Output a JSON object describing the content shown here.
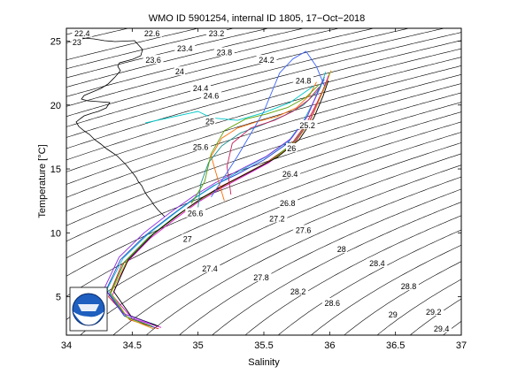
{
  "chart_data": {
    "type": "line",
    "title": "WMO ID 5901254, internal ID 1805, 17−Oct−2018",
    "xlabel": "Salinity",
    "ylabel": "Temperature [°C]",
    "xlim": [
      34,
      37
    ],
    "ylim": [
      2,
      26
    ],
    "x_ticks": [
      34,
      34.5,
      35,
      35.5,
      36,
      36.5,
      37
    ],
    "x_tick_labels": [
      "34",
      "34.5",
      "35",
      "35.5",
      "36",
      "36.5",
      "37"
    ],
    "y_ticks": [
      5,
      10,
      15,
      20,
      25
    ],
    "y_tick_labels": [
      "5",
      "10",
      "15",
      "20",
      "25"
    ],
    "grid": false,
    "density_contours": {
      "levels": [
        22.4,
        22.6,
        23,
        23.2,
        23.4,
        23.6,
        23.8,
        24,
        24.2,
        24.4,
        24.6,
        24.8,
        25,
        25.2,
        25.4,
        25.6,
        25.8,
        26,
        26.2,
        26.4,
        26.6,
        26.8,
        27,
        27.2,
        27.4,
        27.6,
        27.8,
        28,
        28.2,
        28.4,
        28.6,
        28.8,
        29,
        29.2,
        29.4,
        29.6
      ],
      "labels": [
        {
          "text": "22.4",
          "s": 34.12,
          "t": 25.6
        },
        {
          "text": "22.6",
          "s": 34.65,
          "t": 25.6
        },
        {
          "text": "23",
          "s": 34.08,
          "t": 24.9
        },
        {
          "text": "23.2",
          "s": 35.14,
          "t": 25.6
        },
        {
          "text": "23.4",
          "s": 34.9,
          "t": 24.4
        },
        {
          "text": "23.6",
          "s": 34.66,
          "t": 23.5
        },
        {
          "text": "23.8",
          "s": 35.2,
          "t": 24.1
        },
        {
          "text": "24",
          "s": 34.86,
          "t": 22.6
        },
        {
          "text": "24.2",
          "s": 35.52,
          "t": 23.5
        },
        {
          "text": "24.4",
          "s": 35.02,
          "t": 21.3
        },
        {
          "text": "24.6",
          "s": 35.1,
          "t": 20.7
        },
        {
          "text": "24.8",
          "s": 35.8,
          "t": 21.9
        },
        {
          "text": "25",
          "s": 35.09,
          "t": 18.7
        },
        {
          "text": "25.2",
          "s": 35.83,
          "t": 18.4
        },
        {
          "text": "25.6",
          "s": 35.02,
          "t": 16.7
        },
        {
          "text": "26",
          "s": 35.71,
          "t": 16.6
        },
        {
          "text": "26.4",
          "s": 35.7,
          "t": 14.6
        },
        {
          "text": "26.6",
          "s": 34.98,
          "t": 11.5
        },
        {
          "text": "26.8",
          "s": 35.68,
          "t": 12.3
        },
        {
          "text": "27",
          "s": 34.92,
          "t": 9.5
        },
        {
          "text": "27.2",
          "s": 35.6,
          "t": 11.1
        },
        {
          "text": "27.4",
          "s": 35.09,
          "t": 7.2
        },
        {
          "text": "27.6",
          "s": 35.8,
          "t": 10.2
        },
        {
          "text": "27.8",
          "s": 35.48,
          "t": 6.5
        },
        {
          "text": "28",
          "s": 36.09,
          "t": 8.7
        },
        {
          "text": "28.2",
          "s": 35.76,
          "t": 5.4
        },
        {
          "text": "28.4",
          "s": 36.36,
          "t": 7.6
        },
        {
          "text": "28.6",
          "s": 36.02,
          "t": 4.5
        },
        {
          "text": "28.8",
          "s": 36.6,
          "t": 5.8
        },
        {
          "text": "29",
          "s": 36.48,
          "t": 3.6
        },
        {
          "text": "29.2",
          "s": 36.79,
          "t": 3.8
        },
        {
          "text": "29.4",
          "s": 36.85,
          "t": 2.5
        }
      ]
    },
    "series": [
      {
        "color": "#d61a1a",
        "s": [
          34.7,
          34.48,
          34.32,
          34.42,
          34.62,
          34.82,
          35.0,
          35.15,
          35.32,
          35.52,
          35.7,
          35.82,
          35.9,
          35.95,
          35.98
        ],
        "t": [
          2.5,
          3.2,
          5.0,
          7.5,
          9.6,
          11.2,
          12.5,
          13.5,
          14.4,
          15.5,
          16.8,
          18.5,
          20.1,
          21.2,
          22.0
        ]
      },
      {
        "color": "#1f3fd6",
        "s": [
          34.67,
          34.44,
          34.3,
          34.41,
          34.6,
          34.8,
          34.97,
          35.12,
          35.3,
          35.5,
          35.68,
          35.8,
          35.88,
          35.93,
          35.96
        ],
        "t": [
          2.6,
          3.5,
          5.5,
          7.9,
          9.8,
          11.4,
          12.7,
          13.7,
          14.6,
          15.7,
          17.0,
          18.7,
          20.3,
          21.4,
          22.2
        ]
      },
      {
        "color": "#16a21c",
        "s": [
          34.65,
          34.46,
          34.33,
          34.44,
          34.63,
          34.83,
          35.02,
          35.18,
          35.36,
          35.56,
          35.73,
          35.85,
          35.92,
          35.97,
          36.0
        ],
        "t": [
          2.7,
          3.4,
          5.2,
          7.7,
          9.7,
          11.3,
          12.6,
          13.6,
          14.6,
          15.7,
          17.1,
          18.8,
          20.4,
          21.6,
          22.5
        ]
      },
      {
        "color": "#d616d6",
        "s": [
          34.72,
          34.5,
          34.35,
          34.45,
          34.64,
          34.84,
          35.0,
          35.16,
          35.34,
          35.54,
          35.72,
          35.84,
          35.91,
          35.96,
          35.99
        ],
        "t": [
          2.6,
          3.3,
          5.1,
          7.6,
          9.6,
          11.2,
          12.4,
          13.4,
          14.4,
          15.5,
          16.9,
          18.6,
          20.2,
          21.3,
          22.3
        ]
      },
      {
        "color": "#16b8c8",
        "s": [
          34.68,
          34.45,
          34.31,
          34.43,
          34.62,
          34.82,
          34.99,
          35.14,
          35.31,
          35.51,
          35.69,
          35.81,
          35.89,
          35.94,
          35.97
        ],
        "t": [
          2.8,
          3.6,
          5.6,
          8.0,
          9.9,
          11.5,
          12.8,
          13.8,
          14.8,
          15.9,
          17.2,
          18.9,
          20.5,
          21.7,
          22.6
        ]
      },
      {
        "color": "#e0a010",
        "s": [
          34.66,
          34.47,
          34.34,
          34.46,
          34.65,
          34.85,
          35.03,
          35.2,
          35.38,
          35.58,
          35.75,
          35.86,
          35.93,
          35.98,
          36.01
        ],
        "t": [
          2.5,
          3.3,
          5.3,
          7.8,
          9.8,
          11.4,
          12.7,
          13.7,
          14.7,
          15.8,
          17.2,
          18.9,
          20.6,
          21.8,
          22.7
        ]
      },
      {
        "color": "#000000",
        "s": [
          34.7,
          34.49,
          34.36,
          34.47,
          34.66,
          34.86,
          35.04,
          35.21,
          35.4,
          35.6,
          35.77,
          35.88,
          35.95,
          35.99
        ],
        "t": [
          2.7,
          3.5,
          5.4,
          7.9,
          9.9,
          11.5,
          12.8,
          13.8,
          14.8,
          15.9,
          17.3,
          19.0,
          20.7,
          21.9
        ]
      },
      {
        "color": "#8a2be2",
        "s": [
          34.64,
          34.43,
          34.29,
          34.4,
          34.59,
          34.79,
          34.97,
          35.13,
          35.31,
          35.52,
          35.71,
          35.83,
          35.9,
          35.95
        ],
        "t": [
          2.9,
          3.7,
          5.7,
          8.1,
          10.0,
          11.6,
          12.9,
          13.9,
          14.9,
          16.0,
          17.4,
          19.1,
          20.8,
          22.0
        ]
      },
      {
        "color": "#ff6a00",
        "s": [
          35.2,
          35.15,
          35.1,
          35.18,
          35.3,
          35.45,
          35.6,
          35.75,
          35.85,
          35.9
        ],
        "t": [
          12.5,
          14.2,
          16.0,
          17.4,
          18.2,
          18.7,
          19.1,
          19.8,
          20.8,
          21.8
        ]
      },
      {
        "color": "#1b8f8f",
        "s": [
          35.0,
          35.02,
          35.08,
          35.18,
          35.32,
          35.5,
          35.66,
          35.8,
          35.9,
          35.96
        ],
        "t": [
          12.0,
          13.8,
          15.5,
          16.8,
          17.8,
          18.5,
          19.2,
          20.0,
          21.0,
          22.0
        ]
      },
      {
        "color": "#c81e5a",
        "s": [
          35.25,
          35.22,
          35.26,
          35.4,
          35.58,
          35.72,
          35.84,
          35.92
        ],
        "t": [
          13.0,
          15.2,
          17.0,
          18.2,
          18.8,
          19.5,
          20.4,
          21.4
        ]
      },
      {
        "color": "#3c64ff",
        "s": [
          35.1,
          35.3,
          35.5,
          35.62,
          35.72,
          35.82,
          35.9,
          35.96
        ],
        "t": [
          12.8,
          16.0,
          19.5,
          22.5,
          23.6,
          24.2,
          23.0,
          21.5
        ]
      },
      {
        "color": "#5aa000",
        "s": [
          34.95,
          35.05,
          35.1,
          35.2,
          35.36,
          35.52,
          35.68,
          35.82,
          35.92
        ],
        "t": [
          12.3,
          14.0,
          16.2,
          18.0,
          18.9,
          19.3,
          19.8,
          20.6,
          21.6
        ]
      },
      {
        "color": "#00c8c8",
        "s": [
          34.6,
          35.0,
          35.1,
          35.3,
          35.5,
          35.7,
          35.88
        ],
        "t": [
          18.6,
          19.5,
          19.0,
          18.8,
          19.4,
          20.2,
          21.5
        ]
      }
    ]
  }
}
